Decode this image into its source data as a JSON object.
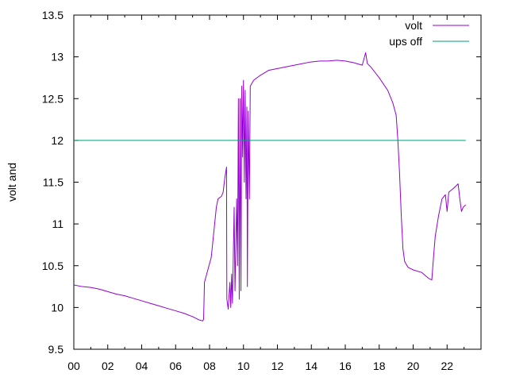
{
  "chart_data": {
    "type": "line",
    "title": "",
    "xlabel": "",
    "ylabel": "volt and",
    "xlim": [
      0,
      24
    ],
    "ylim": [
      9.5,
      13.5
    ],
    "x_ticks": [
      {
        "value": 0,
        "label": "00"
      },
      {
        "value": 2,
        "label": "02"
      },
      {
        "value": 4,
        "label": "04"
      },
      {
        "value": 6,
        "label": "06"
      },
      {
        "value": 8,
        "label": "08"
      },
      {
        "value": 10,
        "label": "10"
      },
      {
        "value": 12,
        "label": "12"
      },
      {
        "value": 14,
        "label": "14"
      },
      {
        "value": 16,
        "label": "16"
      },
      {
        "value": 18,
        "label": "18"
      },
      {
        "value": 20,
        "label": "20"
      },
      {
        "value": 22,
        "label": "22"
      }
    ],
    "y_ticks": [
      {
        "value": 9.5,
        "label": "9.5"
      },
      {
        "value": 10,
        "label": "10"
      },
      {
        "value": 10.5,
        "label": "10.5"
      },
      {
        "value": 11,
        "label": "11"
      },
      {
        "value": 11.5,
        "label": "11.5"
      },
      {
        "value": 12,
        "label": "12"
      },
      {
        "value": 12.5,
        "label": "12.5"
      },
      {
        "value": 13,
        "label": "13"
      },
      {
        "value": 13.5,
        "label": "13.5"
      }
    ],
    "grid": false,
    "legend_position": "top-right",
    "series": [
      {
        "name": "volt",
        "color": "#9400d3",
        "points": [
          [
            0.0,
            10.27
          ],
          [
            0.5,
            10.25
          ],
          [
            1.0,
            10.24
          ],
          [
            1.5,
            10.22
          ],
          [
            2.0,
            10.19
          ],
          [
            2.5,
            10.16
          ],
          [
            3.0,
            10.14
          ],
          [
            3.5,
            10.11
          ],
          [
            4.0,
            10.08
          ],
          [
            4.5,
            10.05
          ],
          [
            5.0,
            10.02
          ],
          [
            5.5,
            9.99
          ],
          [
            6.0,
            9.96
          ],
          [
            6.5,
            9.93
          ],
          [
            7.0,
            9.89
          ],
          [
            7.4,
            9.85
          ],
          [
            7.6,
            9.84
          ],
          [
            7.65,
            9.86
          ],
          [
            7.7,
            10.3
          ],
          [
            7.9,
            10.45
          ],
          [
            8.1,
            10.6
          ],
          [
            8.2,
            10.8
          ],
          [
            8.3,
            11.0
          ],
          [
            8.4,
            11.2
          ],
          [
            8.5,
            11.3
          ],
          [
            8.7,
            11.33
          ],
          [
            8.8,
            11.38
          ],
          [
            8.9,
            11.55
          ],
          [
            9.0,
            11.68
          ],
          [
            9.02,
            10.1
          ],
          [
            9.1,
            9.98
          ],
          [
            9.2,
            10.3
          ],
          [
            9.25,
            10.0
          ],
          [
            9.3,
            10.4
          ],
          [
            9.35,
            10.05
          ],
          [
            9.45,
            11.2
          ],
          [
            9.5,
            10.2
          ],
          [
            9.6,
            11.3
          ],
          [
            9.65,
            10.5
          ],
          [
            9.7,
            12.5
          ],
          [
            9.75,
            10.1
          ],
          [
            9.8,
            12.5
          ],
          [
            9.85,
            10.2
          ],
          [
            9.9,
            12.65
          ],
          [
            9.95,
            11.8
          ],
          [
            10.0,
            12.72
          ],
          [
            10.05,
            11.5
          ],
          [
            10.1,
            12.6
          ],
          [
            10.15,
            11.3
          ],
          [
            10.2,
            12.4
          ],
          [
            10.23,
            10.25
          ],
          [
            10.28,
            12.35
          ],
          [
            10.35,
            11.3
          ],
          [
            10.4,
            12.65
          ],
          [
            10.6,
            12.72
          ],
          [
            11.0,
            12.78
          ],
          [
            11.5,
            12.84
          ],
          [
            12.0,
            12.86
          ],
          [
            12.5,
            12.88
          ],
          [
            13.0,
            12.9
          ],
          [
            13.5,
            12.92
          ],
          [
            14.0,
            12.94
          ],
          [
            14.5,
            12.95
          ],
          [
            15.0,
            12.95
          ],
          [
            15.5,
            12.96
          ],
          [
            16.0,
            12.95
          ],
          [
            16.5,
            12.93
          ],
          [
            17.0,
            12.9
          ],
          [
            17.2,
            13.05
          ],
          [
            17.3,
            12.92
          ],
          [
            17.5,
            12.88
          ],
          [
            18.0,
            12.75
          ],
          [
            18.5,
            12.6
          ],
          [
            18.8,
            12.45
          ],
          [
            19.0,
            12.3
          ],
          [
            19.1,
            12.0
          ],
          [
            19.2,
            11.6
          ],
          [
            19.3,
            11.1
          ],
          [
            19.4,
            10.7
          ],
          [
            19.5,
            10.55
          ],
          [
            19.7,
            10.48
          ],
          [
            20.0,
            10.45
          ],
          [
            20.5,
            10.42
          ],
          [
            20.9,
            10.35
          ],
          [
            21.1,
            10.33
          ],
          [
            21.2,
            10.6
          ],
          [
            21.3,
            10.85
          ],
          [
            21.5,
            11.1
          ],
          [
            21.7,
            11.3
          ],
          [
            21.9,
            11.35
          ],
          [
            22.0,
            11.15
          ],
          [
            22.1,
            11.38
          ],
          [
            22.4,
            11.43
          ],
          [
            22.65,
            11.48
          ],
          [
            22.75,
            11.3
          ],
          [
            22.85,
            11.15
          ],
          [
            22.95,
            11.2
          ],
          [
            23.1,
            11.23
          ]
        ]
      },
      {
        "name": "ups off",
        "color": "#009e73",
        "points": [
          [
            0.0,
            12.0
          ],
          [
            23.1,
            12.0
          ]
        ]
      }
    ]
  }
}
